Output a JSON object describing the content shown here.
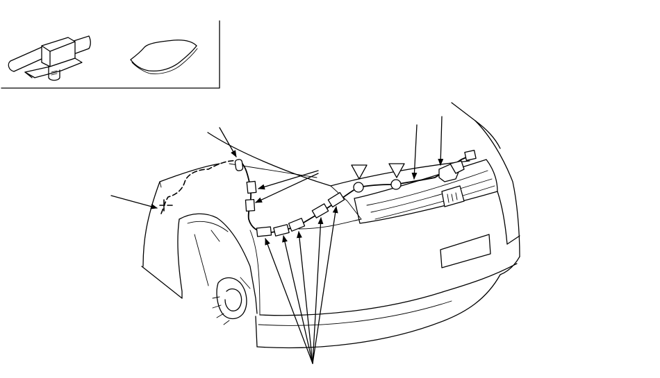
{
  "colors": {
    "line": "#000000",
    "background": "#ffffff"
  },
  "icons": {
    "inset": [
      "harness-clip-icon",
      "cushion-tape-icon"
    ],
    "markers": [
      "triangle-marker-icon",
      "circle-marker-icon"
    ]
  }
}
